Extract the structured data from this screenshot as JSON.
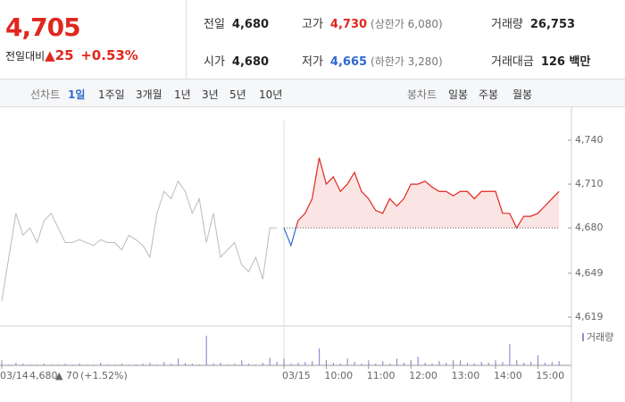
{
  "header": {
    "price": "4,705",
    "change_label": "전일대비",
    "change_mark": "▲",
    "change": "25",
    "change_rate": "+0.53%",
    "stats": [
      [
        "전일",
        "4,680",
        null
      ],
      [
        "고가",
        "4,730",
        "(상한가 6,080)"
      ],
      [
        "거래량",
        "26,753",
        null
      ],
      [
        "시가",
        "4,680",
        null
      ],
      [
        "저가",
        "4,665",
        "(하한가 3,280)"
      ],
      [
        "거래대금",
        "126 백만",
        null
      ]
    ]
  },
  "tabs": {
    "line_label": "선차트",
    "line_periods": [
      "1일",
      "1주일",
      "3개월",
      "1년",
      "3년",
      "5년",
      "10년"
    ],
    "candle_label": "봉차트",
    "candle_periods": [
      "일봉",
      "주봉",
      "월봉"
    ]
  },
  "chart_data": {
    "type": "line",
    "categories": [
      "03/14",
      null,
      null,
      null,
      null,
      null,
      null,
      null,
      null,
      null,
      null,
      null,
      null,
      null,
      null,
      null,
      null,
      null,
      null,
      null,
      null,
      null,
      null,
      null,
      null,
      null,
      null,
      null,
      null,
      null,
      null,
      null,
      null,
      null,
      null,
      null,
      null,
      null,
      null,
      null,
      "03/15",
      null,
      null,
      null,
      null,
      null,
      "10:00",
      null,
      null,
      null,
      null,
      null,
      "11:00",
      null,
      null,
      null,
      null,
      null,
      "12:00",
      null,
      null,
      null,
      null,
      null,
      "13:00",
      null,
      null,
      null,
      null,
      null,
      "14:00",
      null,
      null,
      null,
      null,
      null,
      "15:00",
      null,
      null,
      null
    ],
    "series": [
      {
        "color": "#bbbbbb",
        "values": [
          4630,
          4660,
          4690,
          4675,
          4680,
          4670,
          4685,
          4690,
          4680,
          4670,
          4670,
          4672,
          4670,
          4668,
          4672,
          4670,
          4670,
          4665,
          4675,
          4672,
          4668,
          4660,
          4690,
          4705,
          4700,
          4712,
          4705,
          4690,
          4700,
          4670,
          4690,
          4660,
          4665,
          4670,
          4655,
          4650,
          4660,
          4645,
          4680,
          4680,
          null,
          null,
          null,
          null,
          null,
          null,
          null,
          null,
          null,
          null,
          null,
          null,
          null,
          null,
          null,
          null,
          null,
          null,
          null,
          null,
          null,
          null,
          null,
          null,
          null,
          null,
          null,
          null,
          null,
          null,
          null,
          null,
          null,
          null,
          null,
          null,
          null,
          null,
          null,
          null
        ]
      },
      {
        "color": "#e0271f",
        "down_color": "#2f6ad0",
        "values": [
          null,
          null,
          null,
          null,
          null,
          null,
          null,
          null,
          null,
          null,
          null,
          null,
          null,
          null,
          null,
          null,
          null,
          null,
          null,
          null,
          null,
          null,
          null,
          null,
          null,
          null,
          null,
          null,
          null,
          null,
          null,
          null,
          null,
          null,
          null,
          null,
          null,
          null,
          null,
          null,
          4680,
          4668,
          4685,
          4690,
          4700,
          4728,
          4710,
          4715,
          4705,
          4710,
          4718,
          4705,
          4700,
          4692,
          4690,
          4700,
          4695,
          4700,
          4710,
          4710,
          4712,
          4708,
          4705,
          4705,
          4702,
          4705,
          4705,
          4700,
          4705,
          4705,
          4705,
          4690,
          4690,
          4680,
          4688,
          4688,
          4690,
          4695,
          4700,
          4705
        ]
      }
    ],
    "baseline": 4680,
    "ylim": [
      4619,
      4740
    ],
    "yticks": [
      {
        "value": 4740,
        "label": "4,740"
      },
      {
        "value": 4710,
        "label": "4,710"
      },
      {
        "value": 4680,
        "label": "4,680"
      },
      {
        "value": 4649,
        "label": "4,649"
      },
      {
        "value": 4619,
        "label": "4,619"
      }
    ],
    "volume": {
      "name": "거래량",
      "color": "#9c88d0",
      "ylim": [
        0,
        40
      ],
      "values": [
        2,
        1,
        3,
        2,
        1,
        1,
        2,
        1,
        1,
        2,
        1,
        2,
        1,
        1,
        3,
        1,
        1,
        2,
        1,
        1,
        2,
        3,
        1,
        4,
        2,
        8,
        3,
        2,
        1,
        35,
        2,
        3,
        1,
        2,
        6,
        2,
        1,
        3,
        9,
        4,
        8,
        2,
        3,
        4,
        5,
        20,
        6,
        3,
        2,
        8,
        4,
        2,
        3,
        2,
        5,
        2,
        8,
        3,
        4,
        10,
        3,
        2,
        5,
        3,
        4,
        6,
        3,
        2,
        4,
        3,
        5,
        4,
        25,
        6,
        3,
        4,
        12,
        3,
        4,
        5
      ]
    },
    "footer": {
      "date": "03/14",
      "price": "4,680",
      "mark": "▲",
      "change": "70",
      "rate": "(+1.52%)"
    }
  }
}
